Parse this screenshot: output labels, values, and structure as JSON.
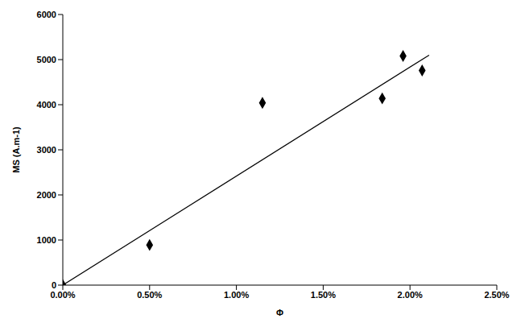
{
  "chart_data": {
    "type": "scatter",
    "x_label": "Φ",
    "y_label": "MS (A.m-1)",
    "xlim": [
      0,
      2.5
    ],
    "xticks": [
      {
        "value": 0,
        "label": "0.00%"
      },
      {
        "value": 0.5,
        "label": "0.50%"
      },
      {
        "value": 1,
        "label": "1.00%"
      },
      {
        "value": 1.5,
        "label": "1.50%"
      },
      {
        "value": 2,
        "label": "2.00%"
      },
      {
        "value": 2.5,
        "label": "2.50%"
      }
    ],
    "ylim": [
      0,
      6000
    ],
    "yticks": [
      0,
      1000,
      2000,
      3000,
      4000,
      5000,
      6000
    ],
    "grid": false,
    "series": [
      {
        "type": "scatter",
        "marker": "diamond",
        "color": "#000000",
        "x": [
          0,
          0.5,
          1.15,
          1.84,
          1.96,
          2.07
        ],
        "values": [
          0,
          890,
          4040,
          4140,
          5080,
          4760
        ]
      },
      {
        "type": "line",
        "color": "#000000",
        "x": [
          0,
          2.11
        ],
        "values": [
          0,
          5100
        ]
      }
    ]
  }
}
